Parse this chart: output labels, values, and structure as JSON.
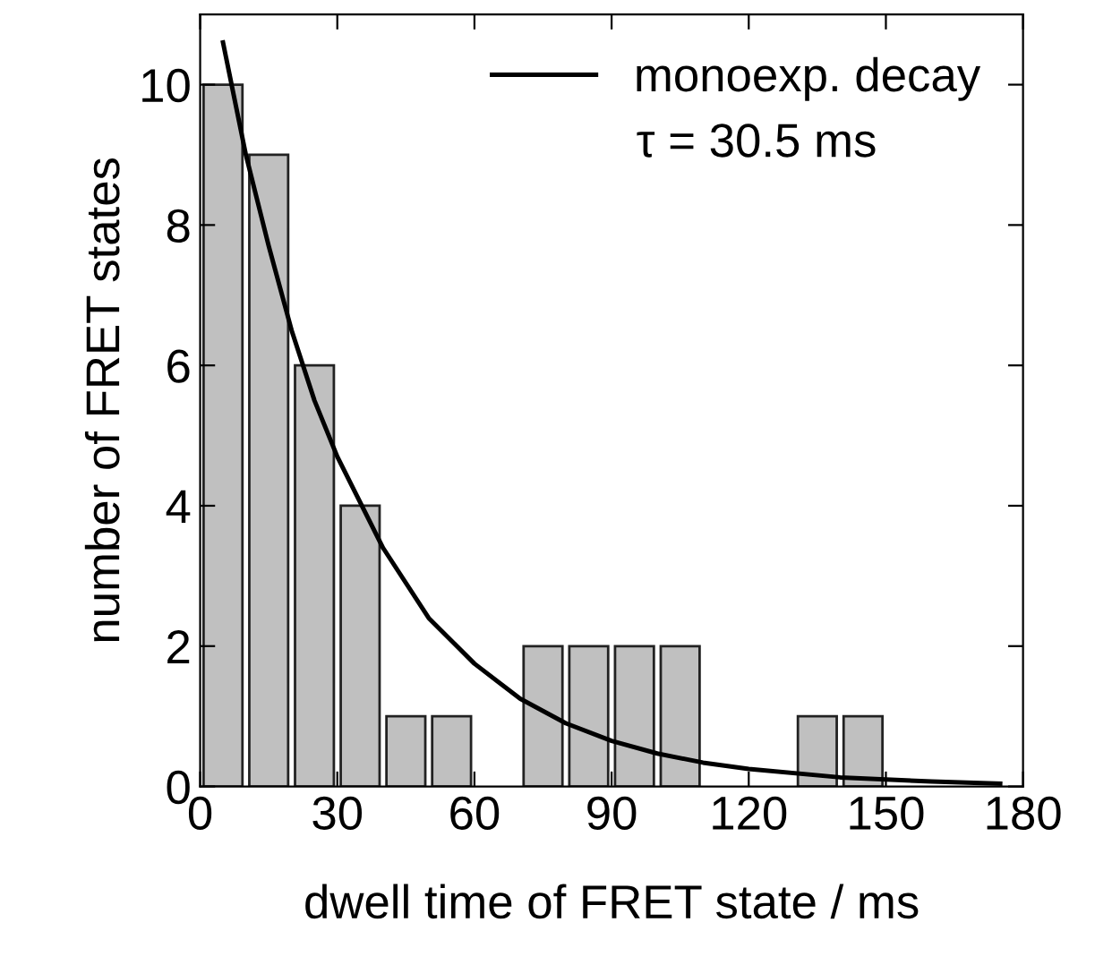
{
  "chart_data": {
    "type": "histogram",
    "xlabel": "dwell time of FRET state / ms",
    "ylabel": "number of FRET states",
    "bins": [
      0,
      10,
      20,
      30,
      40,
      50,
      60,
      70,
      80,
      90,
      100,
      110,
      120,
      130,
      140,
      150
    ],
    "values": [
      10,
      9,
      6,
      4,
      1,
      1,
      0,
      2,
      2,
      2,
      2,
      0,
      0,
      1,
      1
    ],
    "color": "#c0c0c0",
    "series": [
      {
        "type": "line",
        "name": "monoexp. decay",
        "color": "#000000",
        "x": [
          5,
          10,
          15,
          20,
          25,
          30,
          40,
          50,
          60,
          70,
          80,
          90,
          100,
          110,
          120,
          140,
          160,
          175
        ],
        "values": [
          10.6,
          9.0,
          7.7,
          6.5,
          5.5,
          4.7,
          3.4,
          2.4,
          1.75,
          1.25,
          0.9,
          0.65,
          0.47,
          0.34,
          0.25,
          0.13,
          0.07,
          0.04
        ]
      }
    ],
    "annotations": [
      "τ = 30.5 ms"
    ],
    "xlim": [
      0,
      180
    ],
    "ylim": [
      0,
      11
    ],
    "xticks": [
      0,
      30,
      60,
      90,
      120,
      150,
      180
    ],
    "yticks": [
      0,
      2,
      4,
      6,
      8,
      10
    ],
    "legend": "top right",
    "grid": false
  }
}
